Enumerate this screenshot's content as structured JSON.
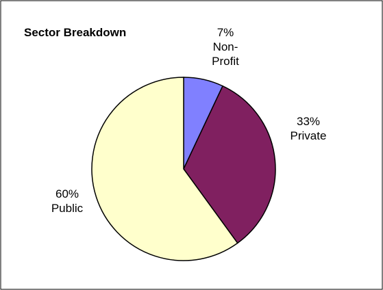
{
  "chart_data": {
    "type": "pie",
    "title": "Sector Breakdown",
    "start_angle_deg": 0,
    "direction": "clockwise",
    "border_color": "#000000",
    "slices": [
      {
        "name": "Non-Profit",
        "value": 7,
        "percent_label": "7%",
        "label_lines": [
          "Non-",
          "Profit"
        ],
        "color": "#8080FF"
      },
      {
        "name": "Private",
        "value": 33,
        "percent_label": "33%",
        "label_lines": [
          "Private"
        ],
        "color": "#802060"
      },
      {
        "name": "Public",
        "value": 60,
        "percent_label": "60%",
        "label_lines": [
          "Public"
        ],
        "color": "#FFFFCC"
      }
    ],
    "legend": "none"
  }
}
